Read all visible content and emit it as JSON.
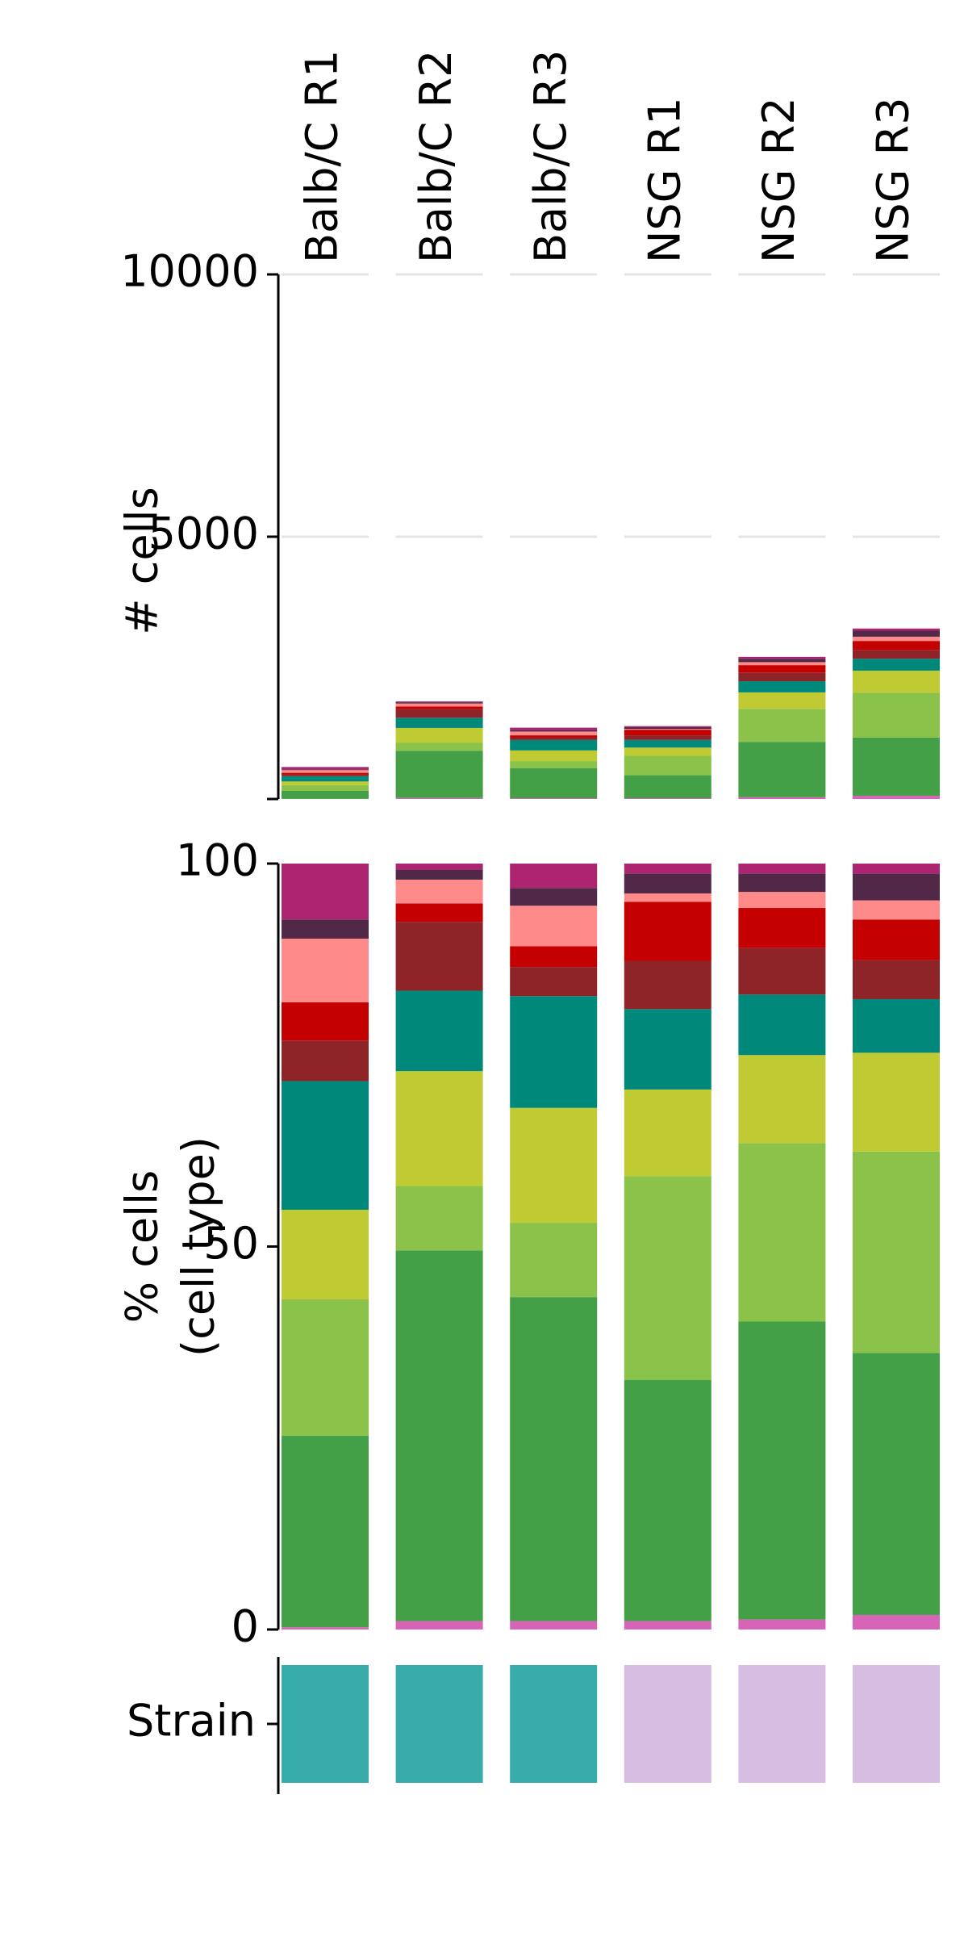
{
  "chart_data": [
    {
      "type": "stacked_bar",
      "ylabel": "# cells",
      "categories": [
        "Balb/C R1",
        "Balb/C R2",
        "Balb/C R3",
        "NSG R1",
        "NSG R2",
        "NSG R3"
      ],
      "ylim": [
        0,
        10000
      ],
      "yticks": [
        5000,
        10000
      ],
      "grid": true,
      "series": [
        {
          "color": "#d864b8",
          "values": [
            2,
            20,
            15,
            15,
            35,
            62
          ]
        },
        {
          "color": "#43a047",
          "values": [
            152,
            900,
            575,
            438,
            1054,
            1111
          ]
        },
        {
          "color": "#8bc34a",
          "values": [
            109,
            156,
            132,
            370,
            631,
            855
          ]
        },
        {
          "color": "#c0ca33",
          "values": [
            71,
            279,
            204,
            157,
            312,
            419
          ]
        },
        {
          "color": "#00897b",
          "values": [
            102,
            195,
            199,
            146,
            214,
            228
          ]
        },
        {
          "color": "#8e2328",
          "values": [
            32,
            167,
            52,
            88,
            165,
            166
          ]
        },
        {
          "color": "#c40000",
          "values": [
            31,
            45,
            37,
            107,
            141,
            172
          ]
        },
        {
          "color": "#ff8a8a",
          "values": [
            51,
            58,
            72,
            15,
            57,
            81
          ]
        },
        {
          "color": "#512848",
          "values": [
            15,
            24,
            31,
            36,
            65,
            114
          ]
        },
        {
          "color": "#ad2470",
          "values": [
            45,
            16,
            43,
            18,
            36,
            42
          ]
        }
      ]
    },
    {
      "type": "stacked_bar",
      "ylabel": [
        "% cells",
        "(cell type)"
      ],
      "ylim": [
        0,
        100
      ],
      "yticks": [
        0,
        50,
        100
      ],
      "grid": false,
      "series": [
        {
          "color": "#d864b8",
          "values": [
            0.3,
            1.1,
            1.1,
            1.1,
            1.3,
            1.9
          ]
        },
        {
          "color": "#43a047",
          "values": [
            25.0,
            48.4,
            42.3,
            31.5,
            38.9,
            34.2
          ]
        },
        {
          "color": "#8bc34a",
          "values": [
            17.8,
            8.4,
            9.7,
            26.6,
            23.3,
            26.3
          ]
        },
        {
          "color": "#c0ca33",
          "values": [
            11.7,
            15.0,
            15.0,
            11.3,
            11.5,
            12.9
          ]
        },
        {
          "color": "#00897b",
          "values": [
            16.8,
            10.5,
            14.6,
            10.5,
            7.9,
            7.0
          ]
        },
        {
          "color": "#8e2328",
          "values": [
            5.3,
            9.0,
            3.8,
            6.3,
            6.1,
            5.1
          ]
        },
        {
          "color": "#c40000",
          "values": [
            5.0,
            2.4,
            2.7,
            7.7,
            5.2,
            5.3
          ]
        },
        {
          "color": "#ff8a8a",
          "values": [
            8.3,
            3.1,
            5.3,
            1.1,
            2.1,
            2.5
          ]
        },
        {
          "color": "#512848",
          "values": [
            2.5,
            1.3,
            2.3,
            2.6,
            2.4,
            3.5
          ]
        },
        {
          "color": "#ad2470",
          "values": [
            7.3,
            0.8,
            3.2,
            1.3,
            1.3,
            1.3
          ]
        }
      ]
    },
    {
      "type": "heatmap",
      "ylabel": "Strain",
      "colors": [
        "#38abab",
        "#38abab",
        "#38abab",
        "#d7bde2",
        "#d7bde2",
        "#d7bde2"
      ]
    }
  ]
}
